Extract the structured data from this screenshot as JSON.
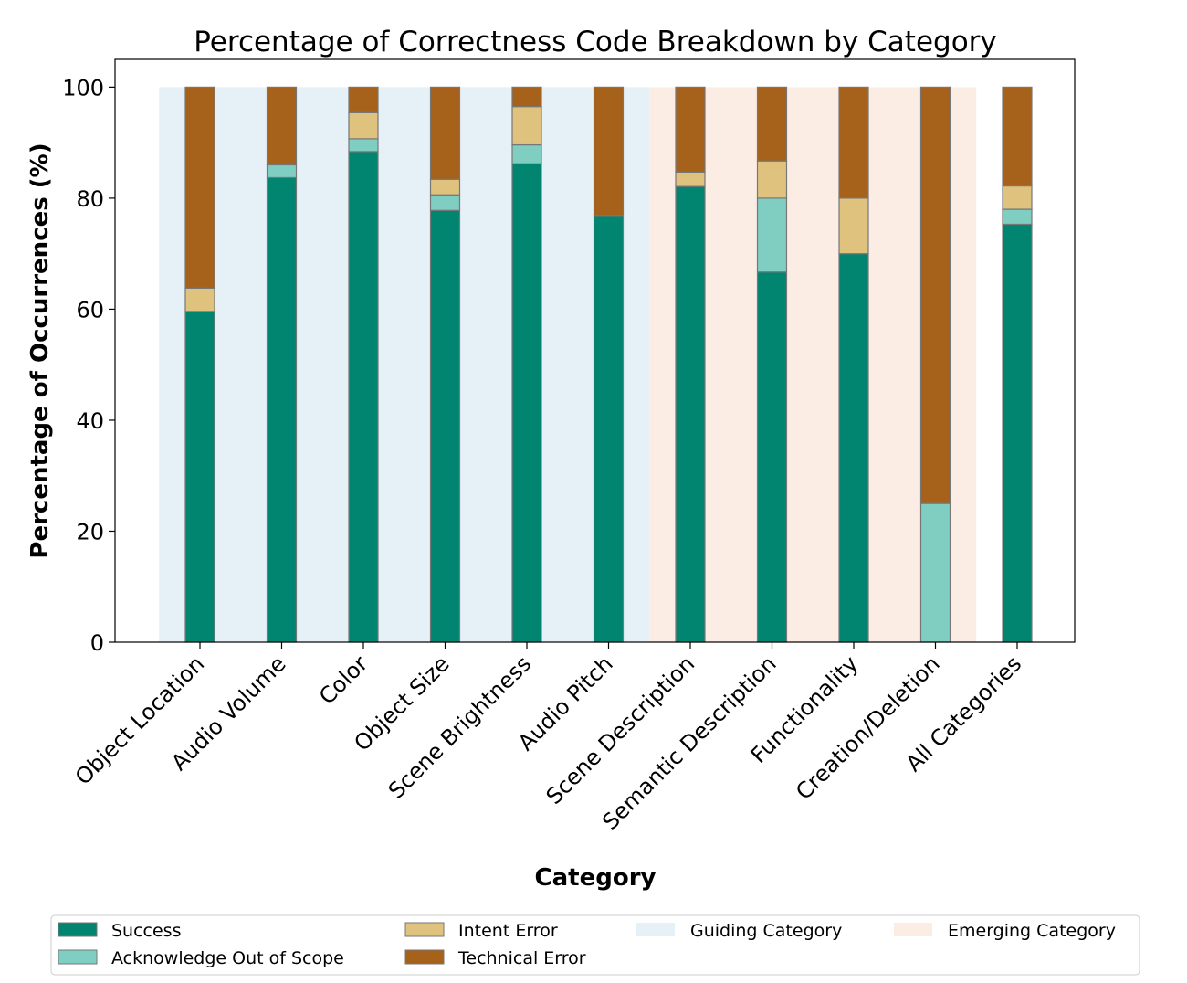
{
  "chart_data": {
    "type": "bar",
    "stacked": true,
    "title": "Percentage of Correctness Code Breakdown by Category",
    "xlabel": "Category",
    "ylabel": "Percentage of Occurrences (%)",
    "ylim": [
      0,
      105
    ],
    "yticks": [
      0,
      20,
      40,
      60,
      80,
      100
    ],
    "grid": false,
    "legend_position": "bottom",
    "categories": [
      "Object Location",
      "Audio Volume",
      "Color",
      "Object Size",
      "Scene Brightness",
      "Audio Pitch",
      "Scene Description",
      "Semantic Description",
      "Functionality",
      "Creation/Deletion",
      "All Categories"
    ],
    "series": [
      {
        "name": "Success",
        "color": "#018571",
        "values": [
          59.6,
          83.7,
          88.4,
          77.8,
          86.2,
          76.9,
          82.1,
          66.7,
          70.0,
          0,
          75.3
        ]
      },
      {
        "name": "Acknowledge Out of Scope",
        "color": "#80cdc1",
        "values": [
          0,
          2.3,
          2.3,
          2.8,
          3.4,
          0,
          0,
          13.3,
          0,
          25.0,
          2.7
        ]
      },
      {
        "name": "Intent Error",
        "color": "#dfc27d",
        "values": [
          4.2,
          0,
          4.7,
          2.8,
          6.9,
          0,
          2.6,
          6.7,
          10.0,
          0,
          4.2
        ]
      },
      {
        "name": "Technical Error",
        "color": "#a6611a",
        "values": [
          36.2,
          14.0,
          4.6,
          16.6,
          3.5,
          23.1,
          15.3,
          13.3,
          20.0,
          75.0,
          17.8
        ]
      }
    ],
    "background_groups": [
      {
        "name": "Guiding Category",
        "color": "#e5f0f7",
        "from_category": "Object Location",
        "to_category": "Audio Pitch"
      },
      {
        "name": "Emerging Category",
        "color": "#fbede4",
        "from_category": "Scene Description",
        "to_category": "Creation/Deletion"
      }
    ]
  }
}
